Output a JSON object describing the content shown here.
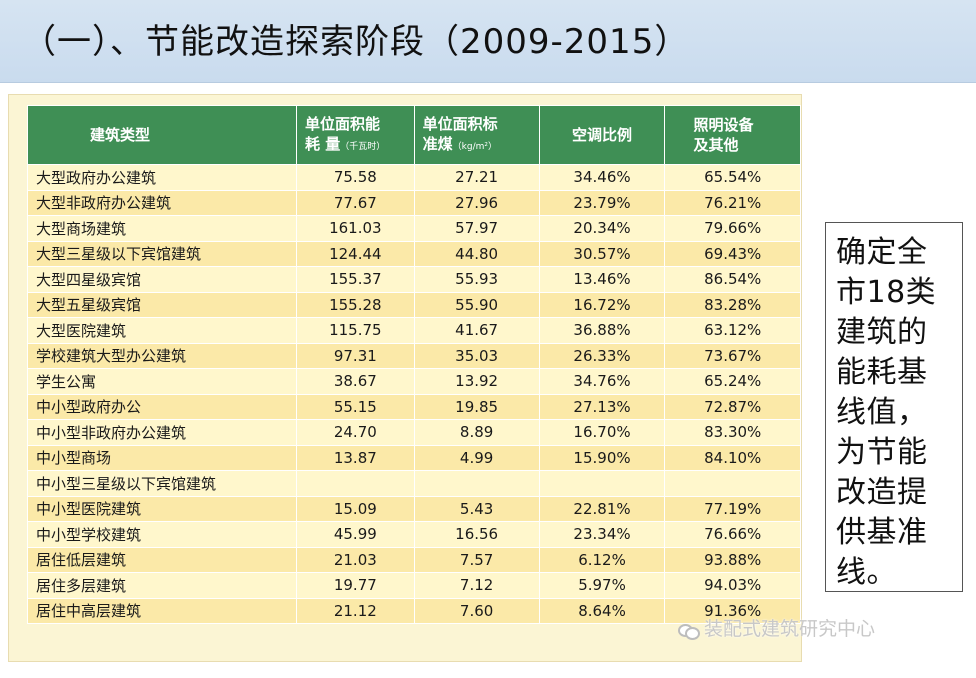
{
  "title": "（一）、节能改造探索阶段（2009-2015）",
  "table": {
    "headers": {
      "type": "建筑类型",
      "energy_line1": "单位面积能",
      "energy_line2": "耗 量",
      "energy_unit": "（千瓦时）",
      "coal_line1": "单位面积标",
      "coal_line2": "准煤",
      "coal_unit": "（kg/m²）",
      "ac": "空调比例",
      "light_line1": "照明设备",
      "light_line2": "及其他"
    },
    "rows": [
      {
        "name": "大型政府办公建筑",
        "energy": "75.58",
        "coal": "27.21",
        "ac": "34.46%",
        "light": "65.54%"
      },
      {
        "name": "大型非政府办公建筑",
        "energy": "77.67",
        "coal": "27.96",
        "ac": "23.79%",
        "light": "76.21%"
      },
      {
        "name": "大型商场建筑",
        "energy": "161.03",
        "coal": "57.97",
        "ac": "20.34%",
        "light": "79.66%"
      },
      {
        "name": "大型三星级以下宾馆建筑",
        "energy": "124.44",
        "coal": "44.80",
        "ac": "30.57%",
        "light": "69.43%"
      },
      {
        "name": "大型四星级宾馆",
        "energy": "155.37",
        "coal": "55.93",
        "ac": "13.46%",
        "light": "86.54%"
      },
      {
        "name": "大型五星级宾馆",
        "energy": "155.28",
        "coal": "55.90",
        "ac": "16.72%",
        "light": "83.28%"
      },
      {
        "name": "大型医院建筑",
        "energy": "115.75",
        "coal": "41.67",
        "ac": "36.88%",
        "light": "63.12%"
      },
      {
        "name": "学校建筑大型办公建筑",
        "energy": "97.31",
        "coal": "35.03",
        "ac": "26.33%",
        "light": "73.67%"
      },
      {
        "name": "学生公寓",
        "energy": "38.67",
        "coal": "13.92",
        "ac": "34.76%",
        "light": "65.24%"
      },
      {
        "name": "中小型政府办公",
        "energy": "55.15",
        "coal": "19.85",
        "ac": "27.13%",
        "light": "72.87%"
      },
      {
        "name": "中小型非政府办公建筑",
        "energy": "24.70",
        "coal": "8.89",
        "ac": "16.70%",
        "light": "83.30%"
      },
      {
        "name": "中小型商场",
        "energy": "13.87",
        "coal": "4.99",
        "ac": "15.90%",
        "light": "84.10%"
      },
      {
        "name": "中小型三星级以下宾馆建筑",
        "energy": "",
        "coal": "",
        "ac": "",
        "light": ""
      },
      {
        "name": "中小型医院建筑",
        "energy": "15.09",
        "coal": "5.43",
        "ac": "22.81%",
        "light": "77.19%"
      },
      {
        "name": "中小型学校建筑",
        "energy": "45.99",
        "coal": "16.56",
        "ac": "23.34%",
        "light": "76.66%"
      },
      {
        "name": "居住低层建筑",
        "energy": "21.03",
        "coal": "7.57",
        "ac": "6.12%",
        "light": "93.88%"
      },
      {
        "name": "居住多层建筑",
        "energy": "19.77",
        "coal": "7.12",
        "ac": "5.97%",
        "light": "94.03%"
      },
      {
        "name": "居住中高层建筑",
        "energy": "21.12",
        "coal": "7.60",
        "ac": "8.64%",
        "light": "91.36%"
      }
    ]
  },
  "note": "确定全市18类建筑的能耗基线值，为节能改造提供基准线。",
  "watermark": "装配式建筑研究中心",
  "colors": {
    "header_green": "#3f8f55",
    "row_light": "#fff7cc",
    "row_dark": "#fbe9a8",
    "title_bar": "#d6e4f2"
  }
}
